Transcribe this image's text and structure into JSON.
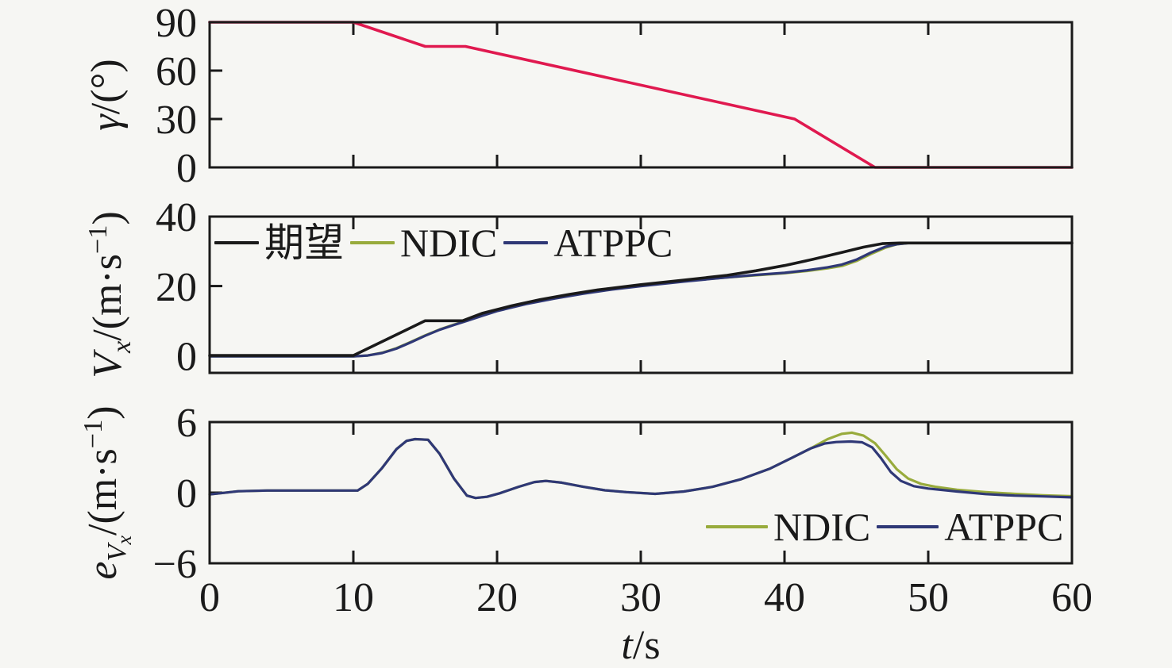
{
  "figure": {
    "background": "#f6f6f3",
    "axis_color": "#1a1a1a",
    "xlabel_plain": "t/s"
  },
  "colors": {
    "gamma_command": "#e0194f",
    "desired": "#1a1a1a",
    "ndic": "#98ab3c",
    "atppc": "#2f3876"
  },
  "chart_data": [
    {
      "id": "gamma-plot",
      "type": "line",
      "ylabel_plain": "γ/(°)",
      "ylabel_segments": [
        {
          "t": "γ",
          "i": 1
        },
        {
          "t": "/(°)"
        }
      ],
      "xlim": [
        0,
        60
      ],
      "ylim": [
        0,
        90
      ],
      "xticks": [
        0,
        10,
        20,
        30,
        40,
        50,
        60
      ],
      "yticks": [
        0,
        30,
        60,
        90
      ],
      "show_x_tick_labels": false,
      "grid": false,
      "series": [
        {
          "name": "gamma-command",
          "color": "#e0194f",
          "width": 3.6,
          "points": [
            [
              0,
              90
            ],
            [
              10,
              90
            ],
            [
              15,
              75
            ],
            [
              17.8,
              75
            ],
            [
              40.7,
              30
            ],
            [
              46.3,
              0
            ],
            [
              60,
              0
            ]
          ]
        }
      ]
    },
    {
      "id": "vx-plot",
      "type": "line",
      "ylabel_plain": "Vx/(m·s−1)",
      "ylabel_segments": [
        {
          "t": "V",
          "i": 1
        },
        {
          "t": "x",
          "i": 1,
          "v": "sub"
        },
        {
          "t": "/(m·s"
        },
        {
          "t": "−1",
          "v": "sup"
        },
        {
          "t": ")"
        }
      ],
      "xlim": [
        0,
        60
      ],
      "ylim": [
        -5,
        40
      ],
      "xticks": [
        0,
        10,
        20,
        30,
        40,
        50,
        60
      ],
      "yticks": [
        0,
        20,
        40
      ],
      "show_x_tick_labels": false,
      "grid": false,
      "legend": {
        "entries": [
          {
            "label": "期望",
            "color": "#1a1a1a"
          },
          {
            "label": "NDIC",
            "color": "#98ab3c"
          },
          {
            "label": "ATPPC",
            "color": "#2f3876"
          }
        ],
        "position": "top-left-inside"
      },
      "series": [
        {
          "name": "ndic",
          "color": "#98ab3c",
          "width": 3.2,
          "points": [
            [
              0,
              -0.25
            ],
            [
              10,
              -0.25
            ],
            [
              11,
              0
            ],
            [
              12,
              0.8
            ],
            [
              13,
              2.1
            ],
            [
              14,
              3.9
            ],
            [
              15,
              5.8
            ],
            [
              16,
              7.5
            ],
            [
              17,
              8.9
            ],
            [
              18,
              10.2
            ],
            [
              19,
              11.6
            ],
            [
              20,
              12.9
            ],
            [
              22,
              14.9
            ],
            [
              24,
              16.5
            ],
            [
              26,
              17.9
            ],
            [
              28,
              19.1
            ],
            [
              30,
              20.1
            ],
            [
              33,
              21.4
            ],
            [
              36,
              22.5
            ],
            [
              38,
              23.1
            ],
            [
              40,
              23.7
            ],
            [
              41.5,
              24.3
            ],
            [
              43,
              25.1
            ],
            [
              44,
              25.8
            ],
            [
              45,
              27.2
            ],
            [
              46,
              29.2
            ],
            [
              47,
              31.0
            ],
            [
              47.8,
              32.0
            ],
            [
              48.6,
              32.4
            ],
            [
              60,
              32.4
            ]
          ]
        },
        {
          "name": "atppc",
          "color": "#2f3876",
          "width": 3.2,
          "points": [
            [
              0,
              -0.25
            ],
            [
              10,
              -0.25
            ],
            [
              11,
              0
            ],
            [
              12,
              0.7
            ],
            [
              13,
              2.0
            ],
            [
              14,
              3.8
            ],
            [
              15,
              5.7
            ],
            [
              16,
              7.4
            ],
            [
              17,
              8.8
            ],
            [
              18,
              10.1
            ],
            [
              19,
              11.5
            ],
            [
              20,
              12.8
            ],
            [
              22,
              14.8
            ],
            [
              24,
              16.4
            ],
            [
              26,
              17.8
            ],
            [
              28,
              19.0
            ],
            [
              30,
              20.0
            ],
            [
              33,
              21.3
            ],
            [
              36,
              22.5
            ],
            [
              38,
              23.2
            ],
            [
              40,
              23.8
            ],
            [
              41.5,
              24.5
            ],
            [
              43,
              25.4
            ],
            [
              44,
              26.2
            ],
            [
              45,
              27.6
            ],
            [
              46,
              29.6
            ],
            [
              47,
              31.3
            ],
            [
              47.9,
              32.1
            ],
            [
              48.7,
              32.4
            ],
            [
              60,
              32.4
            ]
          ]
        },
        {
          "name": "desired",
          "color": "#1a1a1a",
          "width": 3.6,
          "points": [
            [
              0,
              0
            ],
            [
              10,
              0
            ],
            [
              15,
              10
            ],
            [
              17.6,
              10
            ],
            [
              19,
              12.2
            ],
            [
              21,
              14.3
            ],
            [
              23,
              16.1
            ],
            [
              25,
              17.6
            ],
            [
              27,
              18.9
            ],
            [
              30,
              20.4
            ],
            [
              33,
              21.7
            ],
            [
              36,
              23.1
            ],
            [
              38,
              24.4
            ],
            [
              40,
              25.9
            ],
            [
              42,
              27.7
            ],
            [
              44,
              29.7
            ],
            [
              45.5,
              31.2
            ],
            [
              46.8,
              32.2
            ],
            [
              48,
              32.4
            ],
            [
              60,
              32.4
            ]
          ]
        }
      ]
    },
    {
      "id": "error-plot",
      "type": "line",
      "ylabel_plain": "eVx/(m·s−1)",
      "ylabel_segments": [
        {
          "t": "e",
          "i": 1
        },
        {
          "t": "V",
          "i": 1,
          "v": "sub"
        },
        {
          "t": "x",
          "i": 1,
          "v": "subsub"
        },
        {
          "t": "/(m·s"
        },
        {
          "t": "−1",
          "v": "sup"
        },
        {
          "t": ")"
        }
      ],
      "xlim": [
        0,
        60
      ],
      "ylim": [
        -6,
        6
      ],
      "xticks": [
        0,
        10,
        20,
        30,
        40,
        50,
        60
      ],
      "yticks": [
        -6,
        0,
        6
      ],
      "show_x_tick_labels": true,
      "xlabel_segments": [
        {
          "t": "t",
          "i": 1
        },
        {
          "t": "/s"
        }
      ],
      "grid": false,
      "legend": {
        "entries": [
          {
            "label": "NDIC",
            "color": "#98ab3c"
          },
          {
            "label": "ATPPC",
            "color": "#2f3876"
          }
        ],
        "position": "bottom-right-inside"
      },
      "series": [
        {
          "name": "ndic",
          "color": "#98ab3c",
          "width": 3.2,
          "points": [
            [
              0,
              -0.15
            ],
            [
              2,
              0.12
            ],
            [
              4,
              0.18
            ],
            [
              10.3,
              0.18
            ],
            [
              11,
              0.75
            ],
            [
              12,
              2.1
            ],
            [
              13,
              3.7
            ],
            [
              13.7,
              4.4
            ],
            [
              14.3,
              4.55
            ],
            [
              15.2,
              4.5
            ],
            [
              16,
              3.3
            ],
            [
              17,
              1.2
            ],
            [
              17.9,
              -0.25
            ],
            [
              18.5,
              -0.45
            ],
            [
              19.3,
              -0.35
            ],
            [
              20.2,
              -0.05
            ],
            [
              21.5,
              0.5
            ],
            [
              22.6,
              0.9
            ],
            [
              23.4,
              1.0
            ],
            [
              24.5,
              0.85
            ],
            [
              26,
              0.5
            ],
            [
              27.5,
              0.2
            ],
            [
              29,
              0.05
            ],
            [
              31,
              -0.1
            ],
            [
              33,
              0.1
            ],
            [
              35,
              0.5
            ],
            [
              37,
              1.15
            ],
            [
              39,
              2.05
            ],
            [
              40.5,
              2.95
            ],
            [
              41.8,
              3.75
            ],
            [
              43,
              4.55
            ],
            [
              44,
              5.0
            ],
            [
              44.7,
              5.1
            ],
            [
              45.5,
              4.85
            ],
            [
              46.3,
              4.2
            ],
            [
              47,
              3.2
            ],
            [
              47.8,
              2.0
            ],
            [
              48.6,
              1.2
            ],
            [
              49.5,
              0.75
            ],
            [
              50.5,
              0.5
            ],
            [
              52,
              0.25
            ],
            [
              54,
              0.05
            ],
            [
              56,
              -0.1
            ],
            [
              58,
              -0.22
            ],
            [
              60,
              -0.3
            ]
          ]
        },
        {
          "name": "atppc",
          "color": "#2f3876",
          "width": 3.2,
          "points": [
            [
              0,
              -0.15
            ],
            [
              2,
              0.12
            ],
            [
              4,
              0.18
            ],
            [
              10.3,
              0.18
            ],
            [
              11,
              0.75
            ],
            [
              12,
              2.1
            ],
            [
              13,
              3.7
            ],
            [
              13.7,
              4.4
            ],
            [
              14.3,
              4.55
            ],
            [
              15.2,
              4.5
            ],
            [
              16,
              3.3
            ],
            [
              17,
              1.2
            ],
            [
              17.9,
              -0.25
            ],
            [
              18.5,
              -0.45
            ],
            [
              19.3,
              -0.35
            ],
            [
              20.2,
              -0.05
            ],
            [
              21.5,
              0.5
            ],
            [
              22.6,
              0.9
            ],
            [
              23.4,
              1.0
            ],
            [
              24.5,
              0.85
            ],
            [
              26,
              0.5
            ],
            [
              27.5,
              0.2
            ],
            [
              29,
              0.05
            ],
            [
              31,
              -0.1
            ],
            [
              33,
              0.1
            ],
            [
              35,
              0.5
            ],
            [
              37,
              1.15
            ],
            [
              39,
              2.05
            ],
            [
              40.5,
              2.95
            ],
            [
              41.8,
              3.75
            ],
            [
              42.8,
              4.18
            ],
            [
              43.6,
              4.3
            ],
            [
              44.6,
              4.35
            ],
            [
              45.4,
              4.28
            ],
            [
              46.1,
              3.85
            ],
            [
              46.7,
              2.95
            ],
            [
              47.4,
              1.75
            ],
            [
              48.1,
              1.0
            ],
            [
              49,
              0.55
            ],
            [
              50,
              0.35
            ],
            [
              52,
              0.1
            ],
            [
              54,
              -0.12
            ],
            [
              56,
              -0.25
            ],
            [
              58,
              -0.32
            ],
            [
              60,
              -0.4
            ]
          ]
        }
      ]
    }
  ]
}
